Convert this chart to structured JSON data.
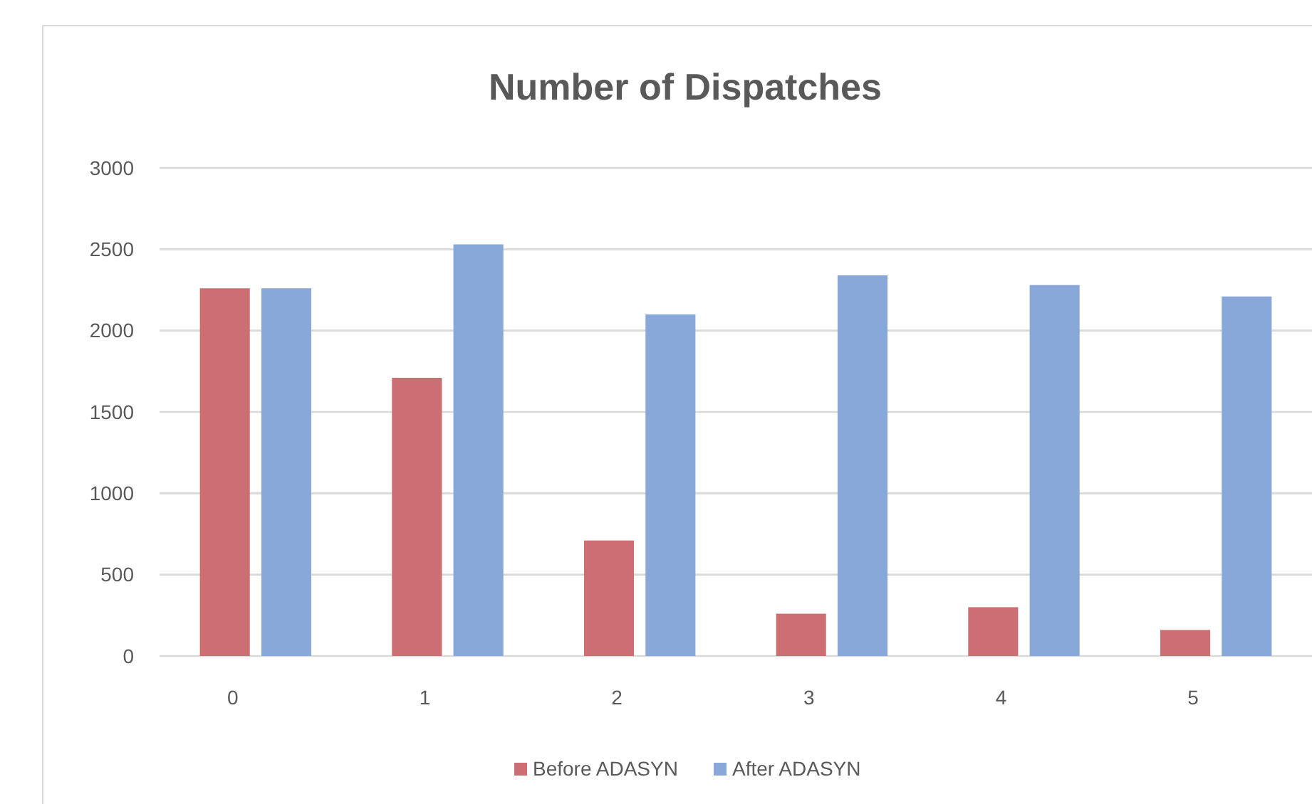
{
  "chart_data": {
    "type": "bar",
    "title": "Number of Dispatches",
    "categories": [
      "0",
      "1",
      "2",
      "3",
      "4",
      "5"
    ],
    "series": [
      {
        "name": "Before ADASYN",
        "color": "#cd6f72",
        "values": [
          2260,
          1710,
          710,
          260,
          300,
          160
        ]
      },
      {
        "name": "After ADASYN",
        "color": "#88a8da",
        "values": [
          2260,
          2530,
          2100,
          2340,
          2280,
          2210
        ]
      }
    ],
    "ylim": [
      0,
      3000
    ],
    "yticks": [
      0,
      500,
      1000,
      1500,
      2000,
      2500,
      3000
    ],
    "grid": "y",
    "legend": "bottom"
  }
}
